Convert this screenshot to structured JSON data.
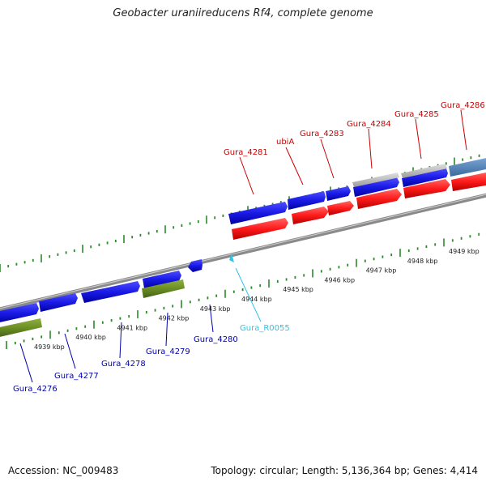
{
  "title": "Geobacter uraniireducens Rf4, complete genome",
  "footer": {
    "accession": "Accession: NC_009483",
    "topology": "Topology: circular; Length: 5,136,364 bp; Genes: 4,414"
  },
  "colors": {
    "forward_cds": "#1a1ae6",
    "reverse_cds": "#ff1a1a",
    "forward_label": "#cc0000",
    "reverse_label": "#0000aa",
    "rna": "#2ec4e6",
    "green_feature": "#6b8e23",
    "grey_feature": "#b8b8b8",
    "steel_feature": "#4f86b8",
    "tick": "#2a8a2a",
    "backbone": "#888888"
  },
  "ticks": {
    "inner": [
      "4939 kbp",
      "4940 kbp",
      "4941 kbp",
      "4942 kbp",
      "4943 kbp",
      "4944 kbp",
      "4945 kbp",
      "4946 kbp",
      "4947 kbp",
      "4948 kbp",
      "4949 kbp"
    ]
  },
  "features": {
    "top_labels": [
      "Gura_4281",
      "ubiA",
      "Gura_4283",
      "Gura_4284",
      "Gura_4285",
      "Gura_4286"
    ],
    "bottom_labels": [
      "Gura_4276",
      "Gura_4277",
      "Gura_4278",
      "Gura_4279",
      "Gura_4280",
      "Gura_R0055"
    ]
  }
}
